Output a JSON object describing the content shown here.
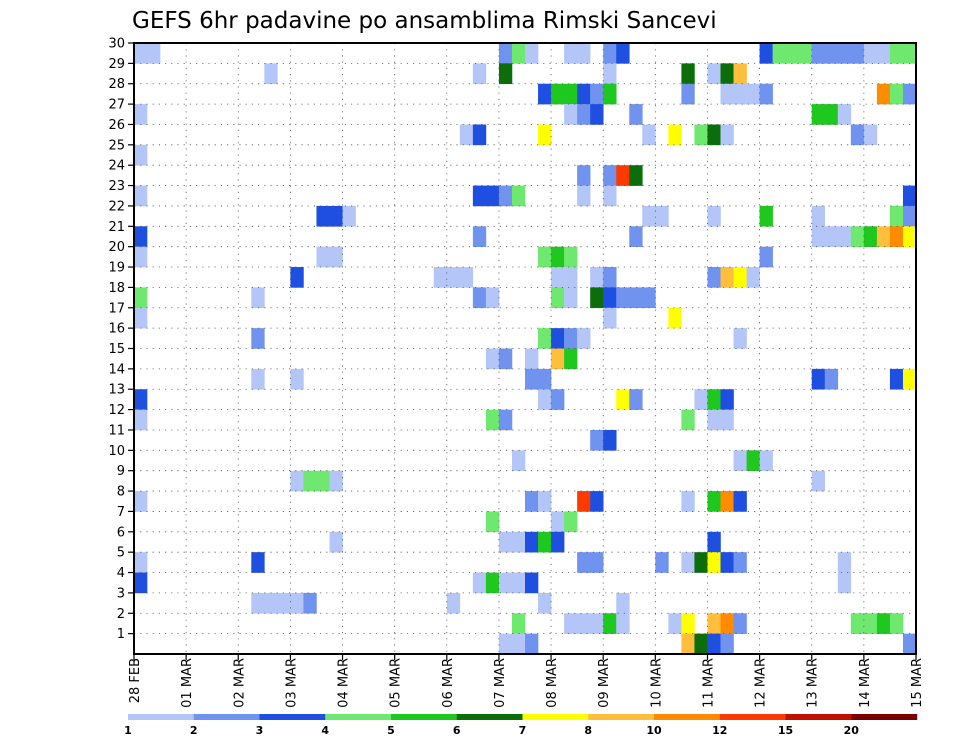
{
  "chart_data": {
    "type": "heatmap",
    "title": "GEFS 6hr padavine po ansamblima Rimski Sancevi",
    "xlabel": "",
    "ylabel": "",
    "grid": true,
    "x_tick_labels": [
      "28 FEB",
      "01 MAR",
      "02 MAR",
      "03 MAR",
      "04 MAR",
      "05 MAR",
      "06 MAR",
      "07 MAR",
      "08 MAR",
      "09 MAR",
      "10 MAR",
      "11 MAR",
      "12 MAR",
      "13 MAR",
      "14 MAR",
      "15 MAR"
    ],
    "y_tick_labels": [
      "1",
      "2",
      "3",
      "4",
      "5",
      "6",
      "7",
      "8",
      "9",
      "10",
      "11",
      "12",
      "13",
      "14",
      "15",
      "16",
      "17",
      "18",
      "19",
      "20",
      "21",
      "22",
      "23",
      "24",
      "25",
      "26",
      "27",
      "28",
      "29",
      "30"
    ],
    "x_unit": "6-hour step from 28 FEB",
    "y_unit": "ensemble member",
    "steps_total": 60,
    "members_total": 30,
    "colorbar": {
      "levels": [
        "1",
        "2",
        "3",
        "4",
        "5",
        "6",
        "7",
        "8",
        "10",
        "12",
        "15",
        "20"
      ],
      "colors": [
        "#b3c6f7",
        "#6f93ee",
        "#1f4fe0",
        "#6fe86f",
        "#1ec81e",
        "#0b6e0b",
        "#ffff00",
        "#ffbe3c",
        "#ff8c00",
        "#ff3a00",
        "#c01000",
        "#7a0000"
      ]
    },
    "cells": [
      [
        0,
        30,
        0
      ],
      [
        1,
        30,
        0
      ],
      [
        28,
        30,
        1
      ],
      [
        29,
        30,
        3
      ],
      [
        30,
        30,
        0
      ],
      [
        33,
        30,
        0
      ],
      [
        34,
        30,
        0
      ],
      [
        36,
        30,
        1
      ],
      [
        37,
        30,
        2
      ],
      [
        48,
        30,
        2
      ],
      [
        49,
        30,
        3
      ],
      [
        50,
        30,
        3
      ],
      [
        51,
        30,
        3
      ],
      [
        52,
        30,
        1
      ],
      [
        53,
        30,
        1
      ],
      [
        54,
        30,
        1
      ],
      [
        55,
        30,
        1
      ],
      [
        56,
        30,
        0
      ],
      [
        57,
        30,
        0
      ],
      [
        58,
        30,
        3
      ],
      [
        59,
        30,
        3
      ],
      [
        10,
        29,
        0
      ],
      [
        26,
        29,
        0
      ],
      [
        28,
        29,
        5
      ],
      [
        36,
        29,
        0
      ],
      [
        42,
        29,
        5
      ],
      [
        44,
        29,
        0
      ],
      [
        45,
        29,
        5
      ],
      [
        46,
        29,
        7
      ],
      [
        31,
        28,
        2
      ],
      [
        32,
        28,
        4
      ],
      [
        33,
        28,
        4
      ],
      [
        34,
        28,
        2
      ],
      [
        35,
        28,
        1
      ],
      [
        36,
        28,
        4
      ],
      [
        42,
        28,
        1
      ],
      [
        45,
        28,
        0
      ],
      [
        46,
        28,
        0
      ],
      [
        47,
        28,
        0
      ],
      [
        48,
        28,
        1
      ],
      [
        57,
        28,
        8
      ],
      [
        58,
        28,
        3
      ],
      [
        59,
        28,
        1
      ],
      [
        0,
        27,
        0
      ],
      [
        33,
        27,
        0
      ],
      [
        34,
        27,
        1
      ],
      [
        35,
        27,
        2
      ],
      [
        38,
        27,
        1
      ],
      [
        52,
        27,
        4
      ],
      [
        53,
        27,
        4
      ],
      [
        54,
        27,
        0
      ],
      [
        25,
        26,
        0
      ],
      [
        26,
        26,
        2
      ],
      [
        31,
        26,
        6
      ],
      [
        39,
        26,
        0
      ],
      [
        41,
        26,
        6
      ],
      [
        43,
        26,
        3
      ],
      [
        44,
        26,
        5
      ],
      [
        45,
        26,
        0
      ],
      [
        55,
        26,
        1
      ],
      [
        56,
        26,
        0
      ],
      [
        0,
        25,
        0
      ],
      [
        34,
        24,
        1
      ],
      [
        36,
        24,
        1
      ],
      [
        37,
        24,
        9
      ],
      [
        38,
        24,
        5
      ],
      [
        0,
        23,
        0
      ],
      [
        26,
        23,
        2
      ],
      [
        27,
        23,
        2
      ],
      [
        28,
        23,
        1
      ],
      [
        29,
        23,
        3
      ],
      [
        34,
        23,
        0
      ],
      [
        36,
        23,
        0
      ],
      [
        59,
        23,
        2
      ],
      [
        14,
        22,
        2
      ],
      [
        15,
        22,
        2
      ],
      [
        16,
        22,
        0
      ],
      [
        39,
        22,
        0
      ],
      [
        40,
        22,
        0
      ],
      [
        44,
        22,
        0
      ],
      [
        48,
        22,
        4
      ],
      [
        52,
        22,
        0
      ],
      [
        58,
        22,
        3
      ],
      [
        59,
        22,
        1
      ],
      [
        0,
        21,
        2
      ],
      [
        26,
        21,
        1
      ],
      [
        38,
        21,
        1
      ],
      [
        52,
        21,
        0
      ],
      [
        53,
        21,
        0
      ],
      [
        54,
        21,
        0
      ],
      [
        55,
        21,
        3
      ],
      [
        56,
        21,
        4
      ],
      [
        57,
        21,
        7
      ],
      [
        58,
        21,
        8
      ],
      [
        59,
        21,
        6
      ],
      [
        0,
        20,
        0
      ],
      [
        14,
        20,
        0
      ],
      [
        15,
        20,
        0
      ],
      [
        31,
        20,
        3
      ],
      [
        32,
        20,
        4
      ],
      [
        33,
        20,
        3
      ],
      [
        48,
        20,
        1
      ],
      [
        12,
        19,
        2
      ],
      [
        23,
        19,
        0
      ],
      [
        24,
        19,
        0
      ],
      [
        25,
        19,
        0
      ],
      [
        32,
        19,
        0
      ],
      [
        33,
        19,
        0
      ],
      [
        35,
        19,
        0
      ],
      [
        36,
        19,
        1
      ],
      [
        44,
        19,
        1
      ],
      [
        45,
        19,
        7
      ],
      [
        46,
        19,
        6
      ],
      [
        47,
        19,
        0
      ],
      [
        0,
        18,
        3
      ],
      [
        9,
        18,
        0
      ],
      [
        26,
        18,
        1
      ],
      [
        27,
        18,
        0
      ],
      [
        32,
        18,
        3
      ],
      [
        33,
        18,
        0
      ],
      [
        35,
        18,
        5
      ],
      [
        36,
        18,
        2
      ],
      [
        37,
        18,
        1
      ],
      [
        38,
        18,
        1
      ],
      [
        39,
        18,
        1
      ],
      [
        0,
        17,
        0
      ],
      [
        36,
        17,
        0
      ],
      [
        41,
        17,
        6
      ],
      [
        9,
        16,
        1
      ],
      [
        31,
        16,
        3
      ],
      [
        32,
        16,
        2
      ],
      [
        33,
        16,
        1
      ],
      [
        34,
        16,
        0
      ],
      [
        46,
        16,
        0
      ],
      [
        27,
        15,
        0
      ],
      [
        28,
        15,
        1
      ],
      [
        30,
        15,
        0
      ],
      [
        32,
        15,
        7
      ],
      [
        33,
        15,
        4
      ],
      [
        9,
        14,
        0
      ],
      [
        12,
        14,
        0
      ],
      [
        30,
        14,
        1
      ],
      [
        31,
        14,
        1
      ],
      [
        52,
        14,
        2
      ],
      [
        53,
        14,
        1
      ],
      [
        58,
        14,
        2
      ],
      [
        59,
        14,
        6
      ],
      [
        0,
        13,
        2
      ],
      [
        31,
        13,
        0
      ],
      [
        32,
        13,
        1
      ],
      [
        37,
        13,
        6
      ],
      [
        38,
        13,
        1
      ],
      [
        43,
        13,
        0
      ],
      [
        44,
        13,
        4
      ],
      [
        45,
        13,
        2
      ],
      [
        0,
        12,
        0
      ],
      [
        27,
        12,
        3
      ],
      [
        28,
        12,
        1
      ],
      [
        42,
        12,
        3
      ],
      [
        44,
        12,
        0
      ],
      [
        45,
        12,
        0
      ],
      [
        35,
        11,
        1
      ],
      [
        36,
        11,
        2
      ],
      [
        29,
        10,
        0
      ],
      [
        46,
        10,
        0
      ],
      [
        47,
        10,
        4
      ],
      [
        48,
        10,
        0
      ],
      [
        12,
        9,
        0
      ],
      [
        13,
        9,
        3
      ],
      [
        14,
        9,
        3
      ],
      [
        15,
        9,
        0
      ],
      [
        52,
        9,
        0
      ],
      [
        0,
        8,
        0
      ],
      [
        30,
        8,
        1
      ],
      [
        31,
        8,
        0
      ],
      [
        34,
        8,
        9
      ],
      [
        35,
        8,
        2
      ],
      [
        42,
        8,
        0
      ],
      [
        44,
        8,
        4
      ],
      [
        45,
        8,
        8
      ],
      [
        46,
        8,
        2
      ],
      [
        27,
        7,
        3
      ],
      [
        32,
        7,
        0
      ],
      [
        33,
        7,
        3
      ],
      [
        15,
        6,
        0
      ],
      [
        28,
        6,
        0
      ],
      [
        29,
        6,
        0
      ],
      [
        30,
        6,
        2
      ],
      [
        31,
        6,
        4
      ],
      [
        32,
        6,
        2
      ],
      [
        44,
        6,
        2
      ],
      [
        0,
        5,
        0
      ],
      [
        9,
        5,
        2
      ],
      [
        34,
        5,
        1
      ],
      [
        35,
        5,
        1
      ],
      [
        40,
        5,
        1
      ],
      [
        42,
        5,
        0
      ],
      [
        43,
        5,
        5
      ],
      [
        44,
        5,
        6
      ],
      [
        45,
        5,
        2
      ],
      [
        46,
        5,
        1
      ],
      [
        54,
        5,
        0
      ],
      [
        0,
        4,
        2
      ],
      [
        26,
        4,
        0
      ],
      [
        27,
        4,
        4
      ],
      [
        28,
        4,
        0
      ],
      [
        29,
        4,
        0
      ],
      [
        30,
        4,
        2
      ],
      [
        54,
        4,
        0
      ],
      [
        9,
        3,
        0
      ],
      [
        10,
        3,
        0
      ],
      [
        11,
        3,
        0
      ],
      [
        12,
        3,
        0
      ],
      [
        13,
        3,
        1
      ],
      [
        24,
        3,
        0
      ],
      [
        31,
        3,
        0
      ],
      [
        37,
        3,
        0
      ],
      [
        29,
        2,
        3
      ],
      [
        33,
        2,
        0
      ],
      [
        34,
        2,
        0
      ],
      [
        35,
        2,
        0
      ],
      [
        36,
        2,
        4
      ],
      [
        37,
        2,
        0
      ],
      [
        41,
        2,
        0
      ],
      [
        42,
        2,
        6
      ],
      [
        44,
        2,
        7
      ],
      [
        45,
        2,
        8
      ],
      [
        46,
        2,
        1
      ],
      [
        55,
        2,
        3
      ],
      [
        56,
        2,
        3
      ],
      [
        57,
        2,
        4
      ],
      [
        58,
        2,
        3
      ],
      [
        28,
        1,
        0
      ],
      [
        29,
        1,
        0
      ],
      [
        30,
        1,
        1
      ],
      [
        42,
        1,
        7
      ],
      [
        43,
        1,
        5
      ],
      [
        44,
        1,
        2
      ],
      [
        45,
        1,
        1
      ],
      [
        59,
        1,
        1
      ]
    ]
  }
}
